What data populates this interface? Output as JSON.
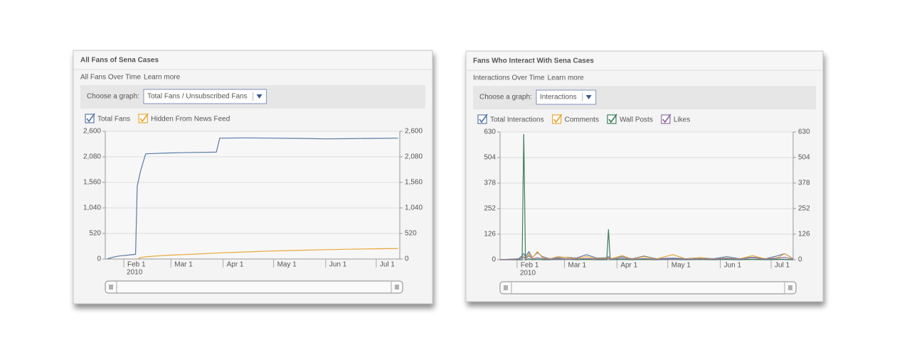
{
  "chart_data": [
    {
      "type": "line",
      "title": "All Fans of Sena Cases",
      "subtitle": "All Fans Over Time",
      "link": "Learn more",
      "control_label": "Choose a graph:",
      "dropdown": "Total Fans / Unsubscribed Fans",
      "x": [
        "2010-01-22",
        "2010-01-26",
        "2010-01-29",
        "2010-02-08",
        "2010-02-09",
        "2010-02-11",
        "2010-02-14",
        "2010-02-20",
        "2010-03-01",
        "2010-03-15",
        "2010-03-28",
        "2010-03-30",
        "2010-04-15",
        "2010-05-01",
        "2010-05-15",
        "2010-06-01",
        "2010-06-15",
        "2010-07-01",
        "2010-07-14"
      ],
      "series": [
        {
          "name": "Total Fans",
          "color": "#5a7aa6",
          "values": [
            0,
            40,
            60,
            95,
            1480,
            1800,
            2140,
            2150,
            2160,
            2170,
            2175,
            2460,
            2465,
            2460,
            2455,
            2445,
            2450,
            2455,
            2460
          ]
        },
        {
          "name": "Hidden From News Feed",
          "color": "#e8a838",
          "values": [
            null,
            null,
            null,
            null,
            0,
            30,
            45,
            60,
            80,
            100,
            120,
            125,
            145,
            165,
            175,
            190,
            200,
            208,
            215
          ]
        }
      ],
      "xlim": [
        "2010-01-21",
        "2010-07-15"
      ],
      "xticks": [
        {
          "value": "2010-02-01",
          "label": "Feb 1"
        },
        {
          "value": "2010-03-01",
          "label": "Mar 1"
        },
        {
          "value": "2010-04-01",
          "label": "Apr 1"
        },
        {
          "value": "2010-05-01",
          "label": "May 1"
        },
        {
          "value": "2010-06-01",
          "label": "Jun 1"
        },
        {
          "value": "2010-07-01",
          "label": "Jul 1"
        }
      ],
      "x_year_label": "2010",
      "ylim": [
        0,
        2600
      ],
      "yticks": [
        0,
        520,
        {
          "value": 1040,
          "label": "1,040"
        },
        {
          "value": 1560,
          "label": "1,560"
        },
        {
          "value": 2080,
          "label": "2,080"
        },
        {
          "value": 2600,
          "label": "2,600"
        }
      ],
      "y2lim": [
        0,
        2600
      ],
      "y2ticks": [
        0,
        520,
        {
          "value": 1040,
          "label": "1,040"
        },
        {
          "value": 1560,
          "label": "1,560"
        },
        {
          "value": 2080,
          "label": "2,080"
        },
        {
          "value": 2600,
          "label": "2,600"
        }
      ],
      "grid": true
    },
    {
      "type": "line",
      "title": "Fans Who Interact With Sena Cases",
      "subtitle": "Interactions Over Time",
      "link": "Learn more",
      "control_label": "Choose a graph:",
      "dropdown": "Interactions",
      "x": [
        "2010-01-22",
        "2010-02-02",
        "2010-02-04",
        "2010-02-05",
        "2010-02-06",
        "2010-02-08",
        "2010-02-10",
        "2010-02-13",
        "2010-02-16",
        "2010-02-20",
        "2010-02-25",
        "2010-03-03",
        "2010-03-08",
        "2010-03-14",
        "2010-03-20",
        "2010-03-26",
        "2010-03-27",
        "2010-03-28",
        "2010-04-04",
        "2010-04-10",
        "2010-04-17",
        "2010-04-24",
        "2010-05-04",
        "2010-05-12",
        "2010-05-20",
        "2010-05-28",
        "2010-06-05",
        "2010-06-12",
        "2010-06-20",
        "2010-06-28",
        "2010-07-05",
        "2010-07-09",
        "2010-07-14"
      ],
      "series": [
        {
          "name": "Total Interactions",
          "color": "#5a7aa6",
          "values": [
            0,
            5,
            20,
            30,
            15,
            40,
            10,
            35,
            15,
            5,
            10,
            12,
            8,
            25,
            8,
            10,
            15,
            5,
            15,
            5,
            18,
            5,
            8,
            5,
            10,
            5,
            15,
            5,
            12,
            5,
            20,
            30,
            5
          ]
        },
        {
          "name": "Comments",
          "color": "#e8a838",
          "values": [
            0,
            3,
            10,
            15,
            5,
            30,
            8,
            40,
            10,
            3,
            15,
            10,
            5,
            15,
            5,
            8,
            10,
            3,
            20,
            3,
            15,
            3,
            25,
            3,
            10,
            3,
            8,
            3,
            20,
            3,
            10,
            30,
            3
          ]
        },
        {
          "name": "Wall Posts",
          "color": "#3a7f5a",
          "values": [
            0,
            0,
            0,
            620,
            0,
            5,
            0,
            3,
            0,
            0,
            2,
            3,
            0,
            2,
            0,
            0,
            150,
            0,
            2,
            0,
            2,
            0,
            2,
            0,
            2,
            0,
            2,
            0,
            2,
            0,
            2,
            2,
            0
          ]
        },
        {
          "name": "Likes",
          "color": "#8e6e9e",
          "values": [
            0,
            2,
            10,
            12,
            5,
            20,
            4,
            10,
            5,
            2,
            5,
            4,
            3,
            6,
            3,
            4,
            5,
            2,
            8,
            2,
            6,
            2,
            4,
            2,
            5,
            2,
            6,
            2,
            10,
            2,
            8,
            12,
            2
          ]
        }
      ],
      "xlim": [
        "2010-01-22",
        "2010-07-14"
      ],
      "xticks": [
        {
          "value": "2010-02-01",
          "label": "Feb 1"
        },
        {
          "value": "2010-03-01",
          "label": "Mar 1"
        },
        {
          "value": "2010-04-01",
          "label": "Apr 1"
        },
        {
          "value": "2010-05-01",
          "label": "May 1"
        },
        {
          "value": "2010-06-01",
          "label": "Jun 1"
        },
        {
          "value": "2010-07-01",
          "label": "Jul 1"
        }
      ],
      "x_year_label": "2010",
      "ylim": [
        0,
        630
      ],
      "yticks": [
        0,
        126,
        252,
        378,
        504,
        630
      ],
      "y2lim": [
        0,
        630
      ],
      "y2ticks": [
        0,
        126,
        252,
        378,
        504,
        630
      ],
      "grid": true
    }
  ]
}
